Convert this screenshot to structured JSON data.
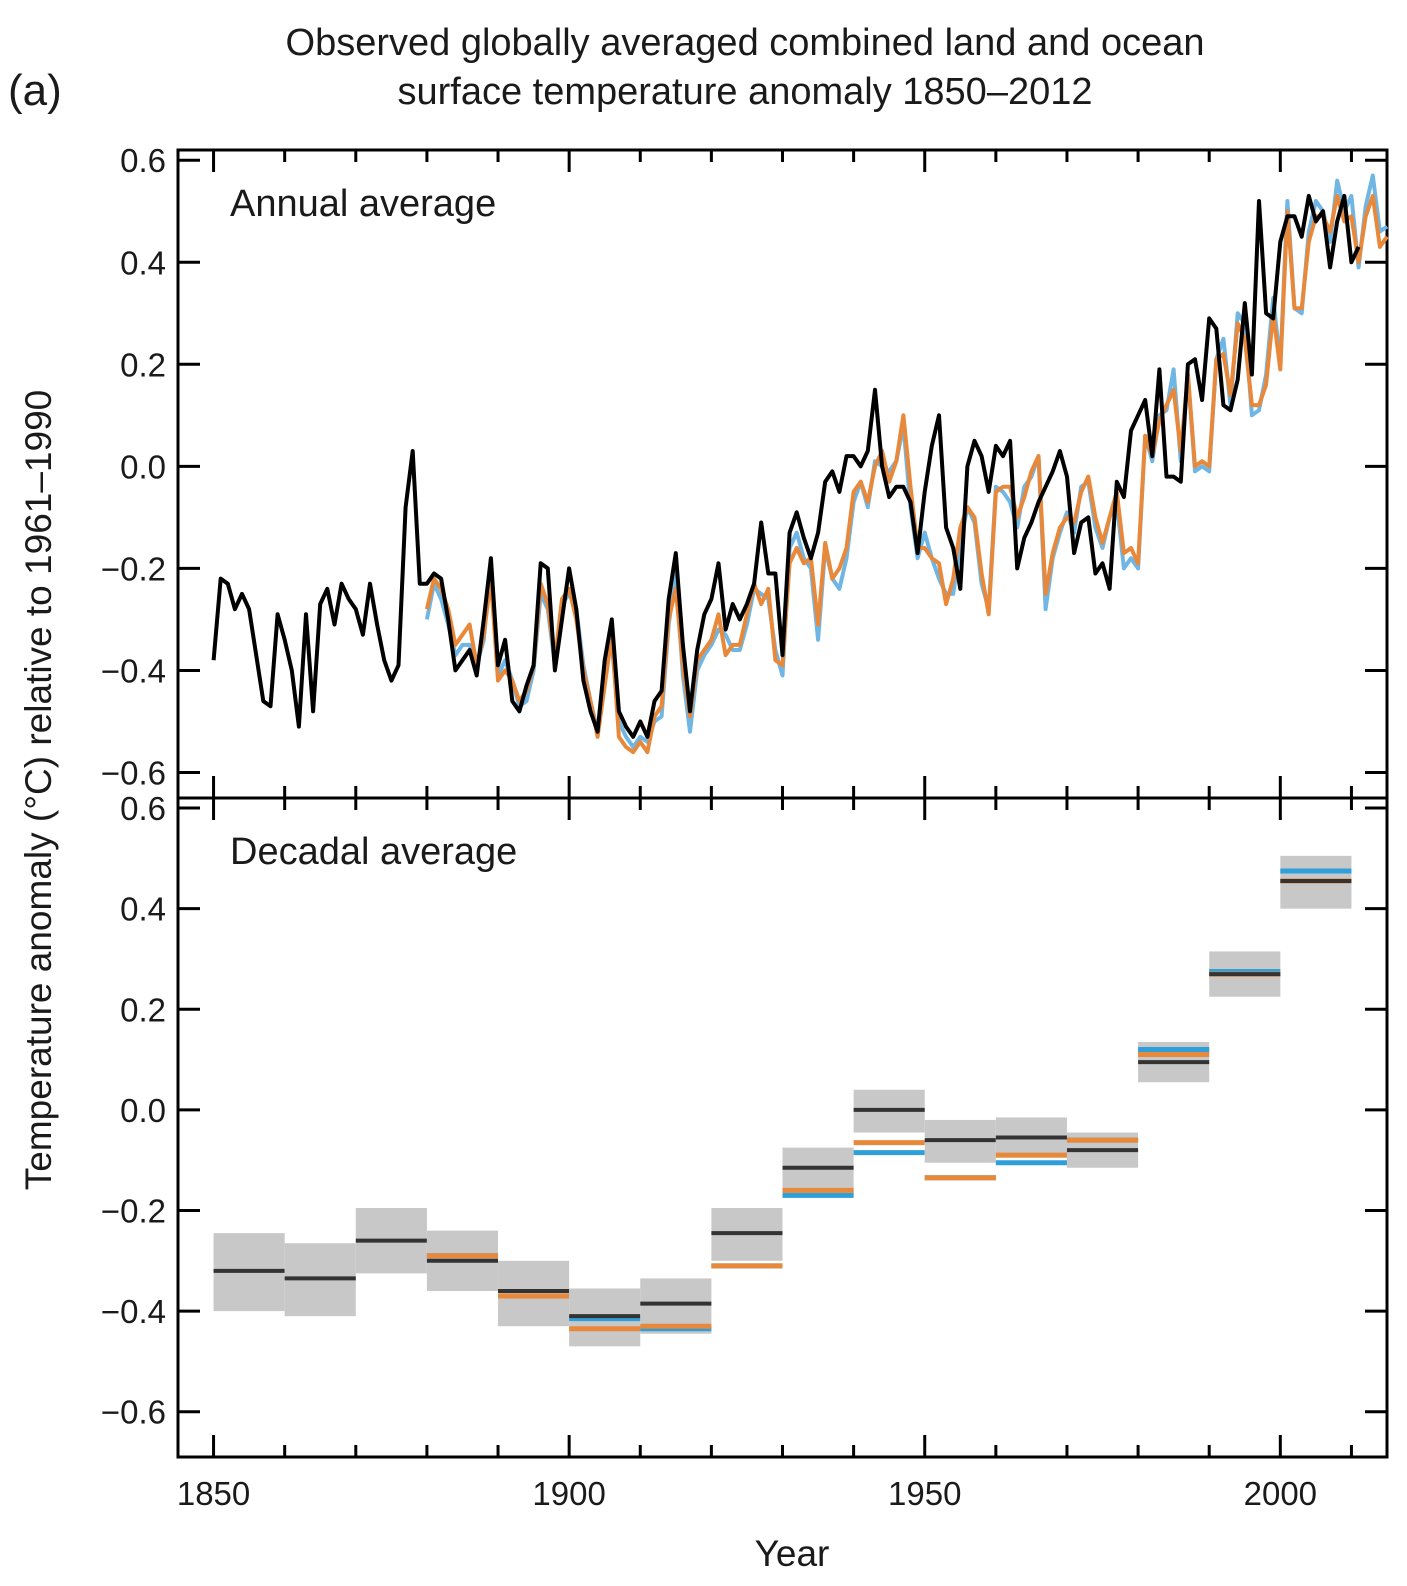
{
  "panel_label": "(a)",
  "title_line1": "Observed globally averaged combined land and ocean",
  "title_line2": "surface temperature anomaly 1850–2012",
  "ylabel": "Temperature anomaly (°C) relative to 1961–1990",
  "xlabel": "Year",
  "colors": {
    "black": "#000000",
    "blue": "#6fb6e4",
    "orange": "#e8883a",
    "box": "#c8c8c8",
    "decadal_black": "#333333",
    "decadal_blue": "#2e9fd8"
  },
  "chart_data": [
    {
      "type": "line",
      "title": "Annual average",
      "xlim": [
        1845,
        2015
      ],
      "ylim": [
        -0.65,
        0.62
      ],
      "xticks": [
        1850,
        1900,
        1950,
        2000
      ],
      "yticks": [
        -0.6,
        -0.4,
        -0.2,
        0.0,
        0.2,
        0.4,
        0.6
      ],
      "ytick_labels": [
        "−0.6",
        "−0.4",
        "−0.2",
        "0.0",
        "0.2",
        "0.4",
        "0.6"
      ],
      "series": [
        {
          "color": "black",
          "x_start": 1850,
          "values": [
            -0.38,
            -0.22,
            -0.23,
            -0.28,
            -0.25,
            -0.28,
            -0.37,
            -0.46,
            -0.47,
            -0.29,
            -0.34,
            -0.4,
            -0.51,
            -0.29,
            -0.48,
            -0.27,
            -0.24,
            -0.31,
            -0.23,
            -0.26,
            -0.28,
            -0.33,
            -0.23,
            -0.31,
            -0.38,
            -0.42,
            -0.39,
            -0.08,
            0.03,
            -0.23,
            -0.23,
            -0.21,
            -0.22,
            -0.3,
            -0.4,
            -0.38,
            -0.36,
            -0.41,
            -0.3,
            -0.18,
            -0.39,
            -0.34,
            -0.46,
            -0.48,
            -0.43,
            -0.39,
            -0.19,
            -0.2,
            -0.4,
            -0.3,
            -0.2,
            -0.28,
            -0.42,
            -0.48,
            -0.52,
            -0.38,
            -0.3,
            -0.48,
            -0.51,
            -0.53,
            -0.5,
            -0.53,
            -0.46,
            -0.44,
            -0.26,
            -0.17,
            -0.35,
            -0.48,
            -0.36,
            -0.29,
            -0.26,
            -0.19,
            -0.32,
            -0.27,
            -0.3,
            -0.27,
            -0.23,
            -0.11,
            -0.21,
            -0.21,
            -0.37,
            -0.13,
            -0.09,
            -0.14,
            -0.18,
            -0.13,
            -0.03,
            -0.01,
            -0.05,
            0.02,
            0.02,
            0.0,
            0.03,
            0.15,
            0.0,
            -0.06,
            -0.04,
            -0.04,
            -0.07,
            -0.17,
            -0.05,
            0.04,
            0.1,
            -0.12,
            -0.16,
            -0.24,
            0.0,
            0.05,
            0.02,
            -0.05,
            0.04,
            0.02,
            0.05,
            -0.2,
            -0.14,
            -0.11,
            -0.07,
            -0.04,
            -0.01,
            0.03,
            -0.02,
            -0.17,
            -0.11,
            -0.1,
            -0.21,
            -0.19,
            -0.24,
            -0.03,
            -0.06,
            0.07,
            0.1,
            0.13,
            0.02,
            0.19,
            -0.02,
            -0.02,
            -0.03,
            0.2,
            0.21,
            0.13,
            0.29,
            0.27,
            0.12,
            0.11,
            0.17,
            0.32,
            0.18,
            0.52,
            0.3,
            0.29,
            0.44,
            0.49,
            0.49,
            0.45,
            0.53,
            0.48,
            0.5,
            0.39,
            0.48,
            0.53,
            0.4,
            0.43
          ]
        },
        {
          "color": "blue",
          "x_start": 1880,
          "values": [
            -0.3,
            -0.23,
            -0.26,
            -0.31,
            -0.37,
            -0.35,
            -0.35,
            -0.39,
            -0.34,
            -0.18,
            -0.41,
            -0.38,
            -0.42,
            -0.47,
            -0.46,
            -0.4,
            -0.25,
            -0.28,
            -0.39,
            -0.27,
            -0.25,
            -0.28,
            -0.39,
            -0.46,
            -0.52,
            -0.4,
            -0.35,
            -0.5,
            -0.53,
            -0.55,
            -0.53,
            -0.54,
            -0.5,
            -0.49,
            -0.31,
            -0.21,
            -0.41,
            -0.52,
            -0.4,
            -0.37,
            -0.35,
            -0.32,
            -0.33,
            -0.36,
            -0.36,
            -0.31,
            -0.24,
            -0.25,
            -0.26,
            -0.36,
            -0.41,
            -0.16,
            -0.13,
            -0.18,
            -0.2,
            -0.34,
            -0.16,
            -0.22,
            -0.24,
            -0.18,
            -0.07,
            -0.03,
            -0.08,
            0.01,
            0.0,
            -0.01,
            0.01,
            0.08,
            -0.08,
            -0.18,
            -0.13,
            -0.18,
            -0.22,
            -0.25,
            -0.25,
            -0.15,
            -0.08,
            -0.11,
            -0.23,
            -0.28,
            -0.04,
            -0.05,
            -0.07,
            -0.12,
            -0.04,
            -0.02,
            0.02,
            -0.28,
            -0.18,
            -0.13,
            -0.09,
            -0.13,
            -0.04,
            -0.03,
            -0.12,
            -0.16,
            -0.1,
            -0.07,
            -0.2,
            -0.18,
            -0.2,
            0.06,
            0.01,
            0.1,
            0.11,
            0.19,
            0.01,
            0.18,
            -0.01,
            0.0,
            -0.01,
            0.21,
            0.25,
            0.12,
            0.3,
            0.28,
            0.1,
            0.11,
            0.18,
            0.33,
            0.2,
            0.52,
            0.31,
            0.3,
            0.46,
            0.52,
            0.5,
            0.44,
            0.56,
            0.5,
            0.53,
            0.39,
            0.51,
            0.57,
            0.46,
            0.47
          ]
        },
        {
          "color": "orange",
          "x_start": 1880,
          "values": [
            -0.28,
            -0.22,
            -0.24,
            -0.28,
            -0.35,
            -0.33,
            -0.31,
            -0.39,
            -0.33,
            -0.22,
            -0.42,
            -0.4,
            -0.42,
            -0.46,
            -0.44,
            -0.39,
            -0.23,
            -0.27,
            -0.38,
            -0.26,
            -0.24,
            -0.3,
            -0.4,
            -0.46,
            -0.53,
            -0.43,
            -0.33,
            -0.53,
            -0.55,
            -0.56,
            -0.54,
            -0.56,
            -0.49,
            -0.47,
            -0.3,
            -0.24,
            -0.39,
            -0.49,
            -0.38,
            -0.36,
            -0.34,
            -0.29,
            -0.37,
            -0.35,
            -0.35,
            -0.29,
            -0.23,
            -0.27,
            -0.24,
            -0.38,
            -0.39,
            -0.19,
            -0.16,
            -0.19,
            -0.18,
            -0.31,
            -0.15,
            -0.22,
            -0.2,
            -0.16,
            -0.05,
            -0.03,
            -0.07,
            0.0,
            0.03,
            -0.03,
            0.01,
            0.1,
            -0.04,
            -0.16,
            -0.16,
            -0.18,
            -0.19,
            -0.27,
            -0.22,
            -0.12,
            -0.08,
            -0.1,
            -0.21,
            -0.29,
            -0.05,
            -0.04,
            -0.04,
            -0.1,
            -0.06,
            -0.01,
            0.02,
            -0.25,
            -0.17,
            -0.12,
            -0.1,
            -0.11,
            -0.05,
            -0.02,
            -0.1,
            -0.15,
            -0.1,
            -0.05,
            -0.17,
            -0.16,
            -0.19,
            0.06,
            0.02,
            0.09,
            0.12,
            0.15,
            0.03,
            0.18,
            0.0,
            0.01,
            0.0,
            0.21,
            0.22,
            0.14,
            0.28,
            0.25,
            0.12,
            0.12,
            0.16,
            0.3,
            0.19,
            0.5,
            0.31,
            0.31,
            0.44,
            0.49,
            0.49,
            0.46,
            0.53,
            0.48,
            0.49,
            0.4,
            0.49,
            0.53,
            0.43,
            0.45
          ]
        }
      ]
    },
    {
      "type": "decadal",
      "title": "Decadal average",
      "xlabel": "Year",
      "xlim": [
        1845,
        2015
      ],
      "ylim": [
        -0.69,
        0.62
      ],
      "xticks": [
        1850,
        1900,
        1950,
        2000
      ],
      "yticks": [
        -0.6,
        -0.4,
        -0.2,
        0.0,
        0.2,
        0.4,
        0.6
      ],
      "ytick_labels": [
        "−0.6",
        "−0.4",
        "−0.2",
        "0.0",
        "0.2",
        "0.4",
        "0.6"
      ],
      "decades": [
        {
          "start": 1850,
          "end": 1860,
          "low": -0.4,
          "high": -0.245,
          "black": -0.32,
          "blue": null,
          "orange": null
        },
        {
          "start": 1860,
          "end": 1870,
          "low": -0.41,
          "high": -0.265,
          "black": -0.335,
          "blue": null,
          "orange": null
        },
        {
          "start": 1870,
          "end": 1880,
          "low": -0.325,
          "high": -0.195,
          "black": -0.26,
          "blue": null,
          "orange": null
        },
        {
          "start": 1880,
          "end": 1890,
          "low": -0.36,
          "high": -0.24,
          "black": -0.3,
          "blue": -0.29,
          "orange": -0.29
        },
        {
          "start": 1890,
          "end": 1900,
          "low": -0.43,
          "high": -0.3,
          "black": -0.36,
          "blue": -0.37,
          "orange": -0.37
        },
        {
          "start": 1900,
          "end": 1910,
          "low": -0.47,
          "high": -0.355,
          "black": -0.41,
          "blue": -0.415,
          "orange": -0.435
        },
        {
          "start": 1910,
          "end": 1920,
          "low": -0.445,
          "high": -0.335,
          "black": -0.385,
          "blue": -0.435,
          "orange": -0.43
        },
        {
          "start": 1920,
          "end": 1930,
          "low": -0.3,
          "high": -0.195,
          "black": -0.245,
          "blue": -0.31,
          "orange": -0.31
        },
        {
          "start": 1930,
          "end": 1940,
          "low": -0.17,
          "high": -0.075,
          "black": -0.115,
          "blue": -0.17,
          "orange": -0.16
        },
        {
          "start": 1940,
          "end": 1950,
          "low": -0.045,
          "high": 0.04,
          "black": 0.0,
          "blue": -0.085,
          "orange": -0.065
        },
        {
          "start": 1950,
          "end": 1960,
          "low": -0.105,
          "high": -0.02,
          "black": -0.06,
          "blue": -0.135,
          "orange": -0.135
        },
        {
          "start": 1960,
          "end": 1970,
          "low": -0.095,
          "high": -0.015,
          "black": -0.055,
          "blue": -0.105,
          "orange": -0.09
        },
        {
          "start": 1970,
          "end": 1980,
          "low": -0.115,
          "high": -0.045,
          "black": -0.08,
          "blue": -0.06,
          "orange": -0.06
        },
        {
          "start": 1980,
          "end": 1990,
          "low": 0.055,
          "high": 0.135,
          "black": 0.095,
          "blue": 0.12,
          "orange": 0.11
        },
        {
          "start": 1990,
          "end": 2000,
          "low": 0.225,
          "high": 0.315,
          "black": 0.27,
          "blue": 0.275,
          "orange": 0.27
        },
        {
          "start": 2000,
          "end": 2010,
          "low": 0.4,
          "high": 0.505,
          "black": 0.455,
          "blue": 0.475,
          "orange": 0.455
        }
      ]
    }
  ]
}
